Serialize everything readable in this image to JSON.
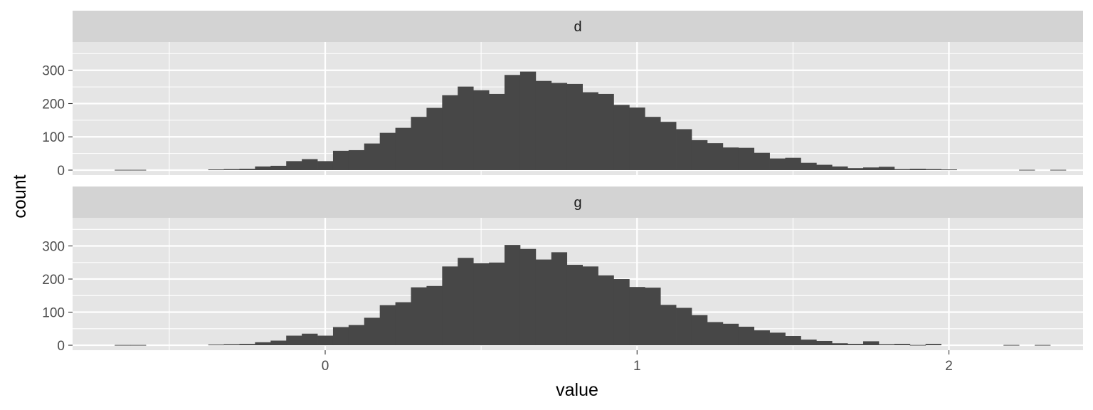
{
  "colors": {
    "panel_background": "#e5e5e5",
    "strip_background": "#d3d3d3",
    "grid_major": "#ffffff",
    "bar_fill": "#474747"
  },
  "chart_data": {
    "type": "bar",
    "subtype": "faceted-histogram",
    "xlabel": "value",
    "ylabel": "count",
    "xlim": [
      -0.81,
      2.43
    ],
    "ylim": [
      -15,
      385
    ],
    "x_ticks": [
      0,
      1,
      2
    ],
    "y_ticks": [
      0,
      100,
      200,
      300
    ],
    "grid": true,
    "legend": "none",
    "bin_width": 0.05,
    "bin_start": -0.675,
    "panels": [
      {
        "name": "d",
        "counts": [
          1,
          1,
          0,
          0,
          0,
          0,
          2,
          3,
          4,
          11,
          13,
          27,
          33,
          27,
          58,
          60,
          80,
          112,
          127,
          160,
          187,
          225,
          251,
          240,
          229,
          286,
          296,
          268,
          262,
          259,
          234,
          229,
          196,
          188,
          160,
          145,
          123,
          90,
          81,
          68,
          67,
          52,
          35,
          37,
          22,
          16,
          11,
          6,
          8,
          10,
          3,
          4,
          3,
          2,
          0,
          0,
          0,
          0,
          1,
          0,
          1
        ]
      },
      {
        "name": "g",
        "counts": [
          1,
          1,
          0,
          0,
          0,
          0,
          2,
          3,
          4,
          9,
          14,
          29,
          35,
          29,
          55,
          61,
          83,
          121,
          130,
          175,
          179,
          238,
          264,
          248,
          250,
          303,
          291,
          259,
          281,
          243,
          238,
          211,
          200,
          176,
          174,
          122,
          113,
          91,
          70,
          65,
          56,
          45,
          38,
          28,
          17,
          13,
          6,
          4,
          12,
          3,
          4,
          1,
          4,
          0,
          0,
          0,
          0,
          1,
          0,
          1,
          0
        ]
      }
    ]
  }
}
